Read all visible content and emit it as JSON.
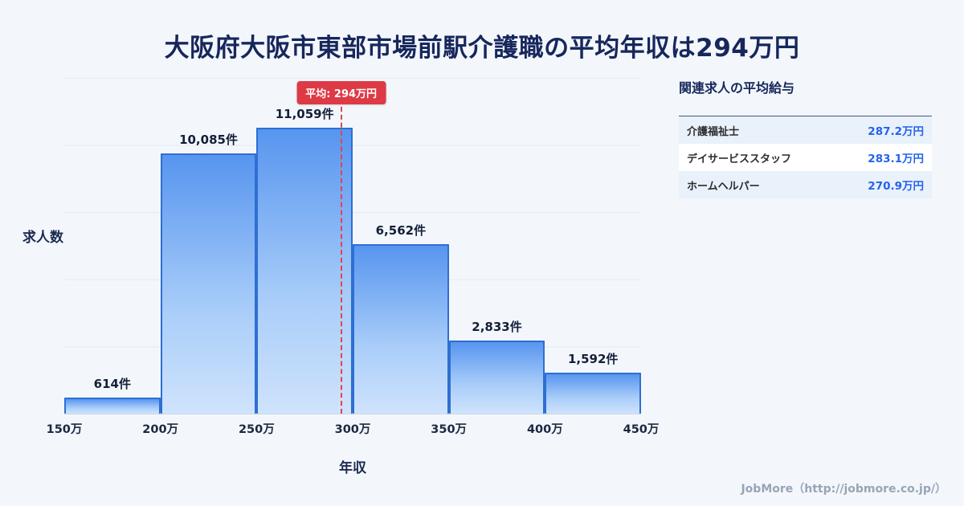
{
  "title": "大阪府大阪市東部市場前駅介護職の平均年収は294万円",
  "chart_data": {
    "type": "bar",
    "categories": [
      "150万",
      "200万",
      "250万",
      "300万",
      "350万",
      "400万",
      "450万"
    ],
    "values": [
      614,
      10085,
      11059,
      6562,
      2833,
      1592
    ],
    "bar_labels": [
      "614件",
      "10,085件",
      "11,059件",
      "6,562件",
      "2,833件",
      "1,592件"
    ],
    "xlabel": "年収",
    "ylabel": "求人数",
    "ylim": [
      0,
      13000
    ],
    "x_range": [
      150,
      450
    ],
    "grid": true,
    "average": {
      "value": 294,
      "label": "平均: 294万円"
    }
  },
  "side_panel": {
    "title": "関連求人の平均給与",
    "rows": [
      {
        "name": "介護福祉士",
        "value": "287.2万円"
      },
      {
        "name": "デイサービススタッフ",
        "value": "283.1万円"
      },
      {
        "name": "ホームヘルパー",
        "value": "270.9万円"
      }
    ]
  },
  "footer": {
    "credit": "JobMore（http://jobmore.co.jp/）"
  },
  "colors": {
    "background": "#f3f7fc",
    "title_navy": "#17275c",
    "bar_border": "#2e6fd2",
    "bar_gradient_top": "#5795ef",
    "bar_gradient_bottom": "#cfe3fc",
    "average_red": "#dd3a45",
    "value_blue": "#2563eb"
  }
}
